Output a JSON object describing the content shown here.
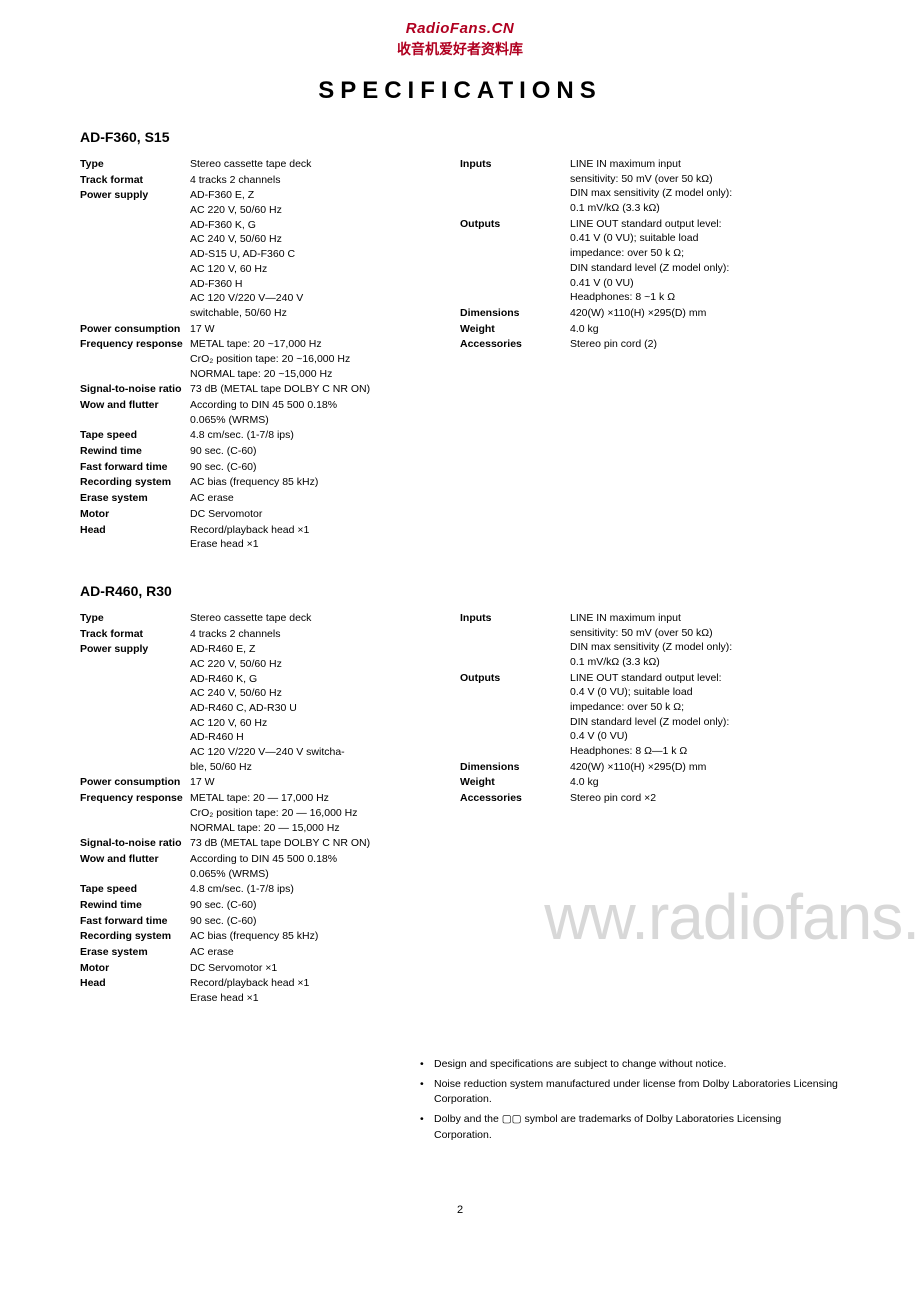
{
  "header": {
    "line1": "RadioFans.CN",
    "line2": "收音机爱好者资料库"
  },
  "title": "SPECIFICATIONS",
  "model1": {
    "heading": "AD-F360, S15",
    "left": [
      {
        "label": "Type",
        "value": "Stereo cassette tape deck"
      },
      {
        "label": "Track format",
        "value": "4 tracks 2 channels"
      },
      {
        "label": "Power supply",
        "value": "AD-F360 E, Z\nAC 220 V, 50/60 Hz\nAD-F360 K, G\nAC 240 V, 50/60 Hz\nAD-S15 U, AD-F360 C\nAC 120 V, 60 Hz\nAD-F360 H\nAC 120 V/220 V—240 V\nswitchable, 50/60 Hz"
      },
      {
        "label": "Power consumption",
        "value": "17 W"
      },
      {
        "label": "Frequency response",
        "value": "METAL tape:        20 ~17,000 Hz\nCrO₂ position tape: 20 ~16,000 Hz\nNORMAL tape:     20 ~15,000 Hz"
      },
      {
        "label": "Signal-to-noise ratio",
        "value": "73 dB (METAL tape DOLBY C NR ON)"
      },
      {
        "label": "Wow and flutter",
        "value": "According to DIN 45 500    0.18%\n0.065% (WRMS)"
      },
      {
        "label": "Tape speed",
        "value": "4.8 cm/sec. (1-7/8 ips)"
      },
      {
        "label": "Rewind time",
        "value": "90 sec. (C-60)"
      },
      {
        "label": "Fast forward time",
        "value": "90 sec. (C-60)"
      },
      {
        "label": "Recording system",
        "value": "AC bias (frequency 85 kHz)"
      },
      {
        "label": "Erase system",
        "value": "AC erase"
      },
      {
        "label": "Motor",
        "value": "DC Servomotor"
      },
      {
        "label": "Head",
        "value": "Record/playback head ×1\nErase head ×1"
      }
    ],
    "right": [
      {
        "label": "Inputs",
        "value": "LINE IN maximum input\nsensitivity: 50 mV (over 50 kΩ)\nDIN max sensitivity (Z model only):\n0.1 mV/kΩ (3.3 kΩ)"
      },
      {
        "label": "Outputs",
        "value": "LINE OUT standard output level:\n0.41 V (0 VU); suitable load\nimpedance: over 50 k Ω;\nDIN standard level (Z model only):\n0.41 V (0 VU)\nHeadphones: 8 ~1 k Ω"
      },
      {
        "label": "Dimensions",
        "value": "420(W) ×110(H) ×295(D) mm"
      },
      {
        "label": "Weight",
        "value": "4.0 kg"
      },
      {
        "label": "Accessories",
        "value": "Stereo pin cord (2)"
      }
    ]
  },
  "model2": {
    "heading": "AD-R460, R30",
    "left": [
      {
        "label": "Type",
        "value": "Stereo cassette tape deck"
      },
      {
        "label": "Track format",
        "value": "4 tracks 2 channels"
      },
      {
        "label": "Power supply",
        "value": "AD-R460 E, Z\nAC 220 V, 50/60 Hz\nAD-R460 K, G\nAC 240 V, 50/60 Hz\nAD-R460 C, AD-R30 U\nAC 120 V, 60 Hz\nAD-R460 H\nAC 120 V/220 V—240 V switcha-\nble, 50/60 Hz"
      },
      {
        "label": "Power consumption",
        "value": "17 W"
      },
      {
        "label": "Frequency response",
        "value": "METAL tape:        20 — 17,000 Hz\nCrO₂ position tape: 20 — 16,000 Hz\nNORMAL tape:     20 — 15,000 Hz"
      },
      {
        "label": "Signal-to-noise ratio",
        "value": "73 dB (METAL tape DOLBY C NR ON)"
      },
      {
        "label": "Wow and flutter",
        "value": "According to DIN 45 500    0.18%\n0.065% (WRMS)"
      },
      {
        "label": "Tape speed",
        "value": "4.8 cm/sec. (1-7/8 ips)"
      },
      {
        "label": "Rewind time",
        "value": "90 sec. (C-60)"
      },
      {
        "label": "Fast forward time",
        "value": "90 sec. (C-60)"
      },
      {
        "label": "Recording system",
        "value": "AC bias (frequency 85 kHz)"
      },
      {
        "label": "Erase system",
        "value": "AC erase"
      },
      {
        "label": "Motor",
        "value": "DC Servomotor ×1"
      },
      {
        "label": "Head",
        "value": "Record/playback head ×1\nErase head ×1"
      }
    ],
    "right": [
      {
        "label": "Inputs",
        "value": "LINE IN maximum input\nsensitivity: 50 mV (over 50 kΩ)\nDIN max sensitivity (Z model only):\n0.1 mV/kΩ (3.3 kΩ)"
      },
      {
        "label": "Outputs",
        "value": "LINE OUT standard output level:\n0.4 V (0 VU); suitable load\nimpedance: over 50 k Ω;\nDIN standard level (Z model only):\n0.4 V (0 VU)\nHeadphones: 8 Ω—1 k Ω"
      },
      {
        "label": "Dimensions",
        "value": "   420(W) ×110(H) ×295(D) mm"
      },
      {
        "label": "Weight",
        "value": "4.0 kg"
      },
      {
        "label": "Accessories",
        "value": "Stereo pin cord ×2"
      }
    ]
  },
  "notes": [
    "Design and specifications are subject to change without notice.",
    "Noise reduction system manufactured under license from Dolby Laboratories Licensing Corporation.",
    "Dolby and the ▢▢ symbol are trademarks of Dolby Laboratories Licensing Corporation."
  ],
  "watermark": "ww.radiofans.c",
  "pageNumber": "2",
  "colors": {
    "accent": "#b00020",
    "text": "#000000",
    "watermark": "#d8d8d8",
    "background": "#ffffff"
  }
}
